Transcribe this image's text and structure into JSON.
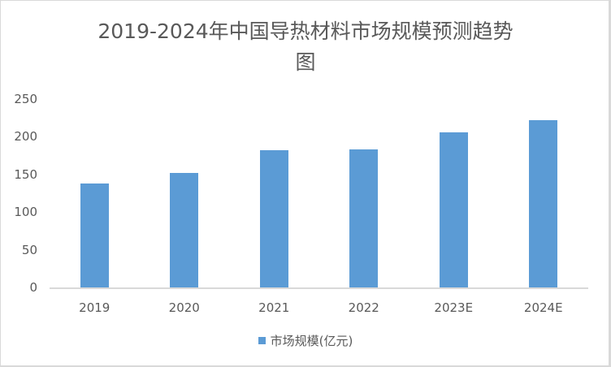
{
  "chart_data": {
    "type": "bar",
    "title": "2019-2024年中国导热材料市场规模预测趋势图",
    "title_lines": [
      "2019-2024年中国导热材料市场规模预测趋势",
      "图"
    ],
    "categories": [
      "2019",
      "2020",
      "2021",
      "2022",
      "2023E",
      "2024E"
    ],
    "series": [
      {
        "name": "市场规模(亿元)",
        "values": [
          138,
          152,
          182,
          183,
          206,
          222
        ],
        "color": "#5b9bd5"
      }
    ],
    "xlabel": "",
    "ylabel": "",
    "ylim": [
      0,
      250
    ],
    "yticks": [
      "0",
      "50",
      "100",
      "150",
      "200",
      "250"
    ],
    "grid": false,
    "legend_position": "bottom"
  }
}
